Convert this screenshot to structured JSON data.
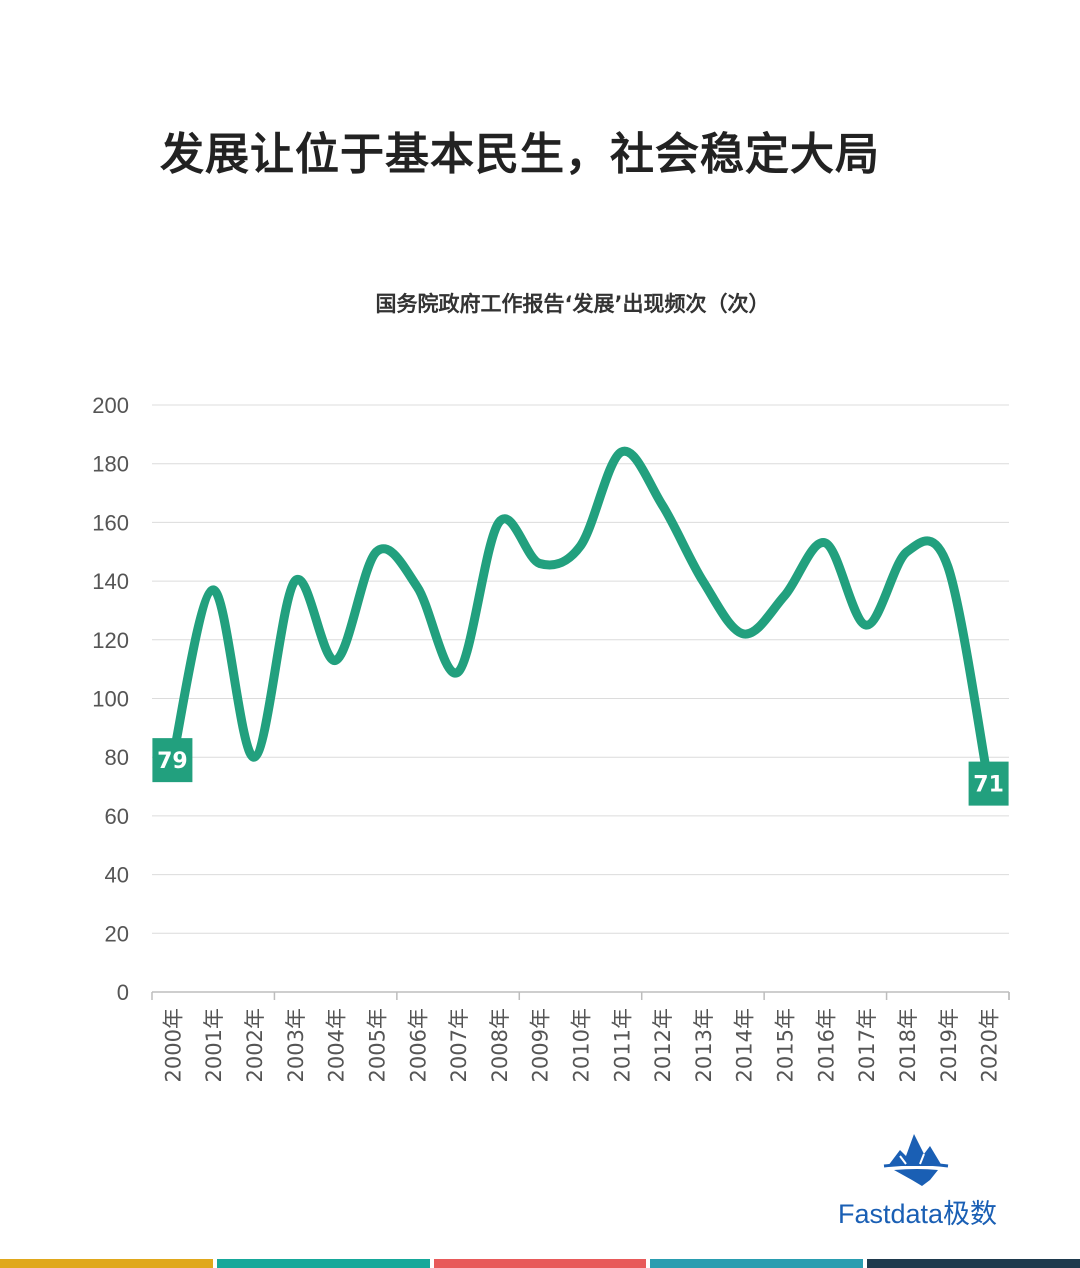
{
  "headline": "发展让位于基本民生，社会稳定大局",
  "chart_data": {
    "type": "line",
    "title": "国务院政府工作报告‘发展’出现频次（次）",
    "xlabel": "",
    "ylabel": "",
    "categories": [
      "2000年",
      "2001年",
      "2002年",
      "2003年",
      "2004年",
      "2005年",
      "2006年",
      "2007年",
      "2008年",
      "2009年",
      "2010年",
      "2011年",
      "2012年",
      "2013年",
      "2014年",
      "2015年",
      "2016年",
      "2017年",
      "2018年",
      "2019年",
      "2020年"
    ],
    "series": [
      {
        "values": [
          79,
          137,
          80,
          140,
          113,
          150,
          138,
          109,
          160,
          146,
          152,
          184,
          166,
          140,
          122,
          135,
          153,
          125,
          150,
          145,
          71
        ],
        "color": "#22a07e"
      }
    ],
    "ylim": [
      0,
      200
    ],
    "yticks": [
      0,
      20,
      40,
      60,
      80,
      100,
      120,
      140,
      160,
      180,
      200
    ],
    "grid": true,
    "data_labels": [
      {
        "index": 0,
        "text": "79"
      },
      {
        "index": 20,
        "text": "71"
      }
    ]
  },
  "logo": {
    "text": "Fastdata极数",
    "icon": "iceberg-icon",
    "color": "#1a5fb4"
  },
  "footer_stripes": [
    "#e0a81c",
    "#17a89a",
    "#e85a5a",
    "#2a9db0",
    "#1f3a4d"
  ]
}
